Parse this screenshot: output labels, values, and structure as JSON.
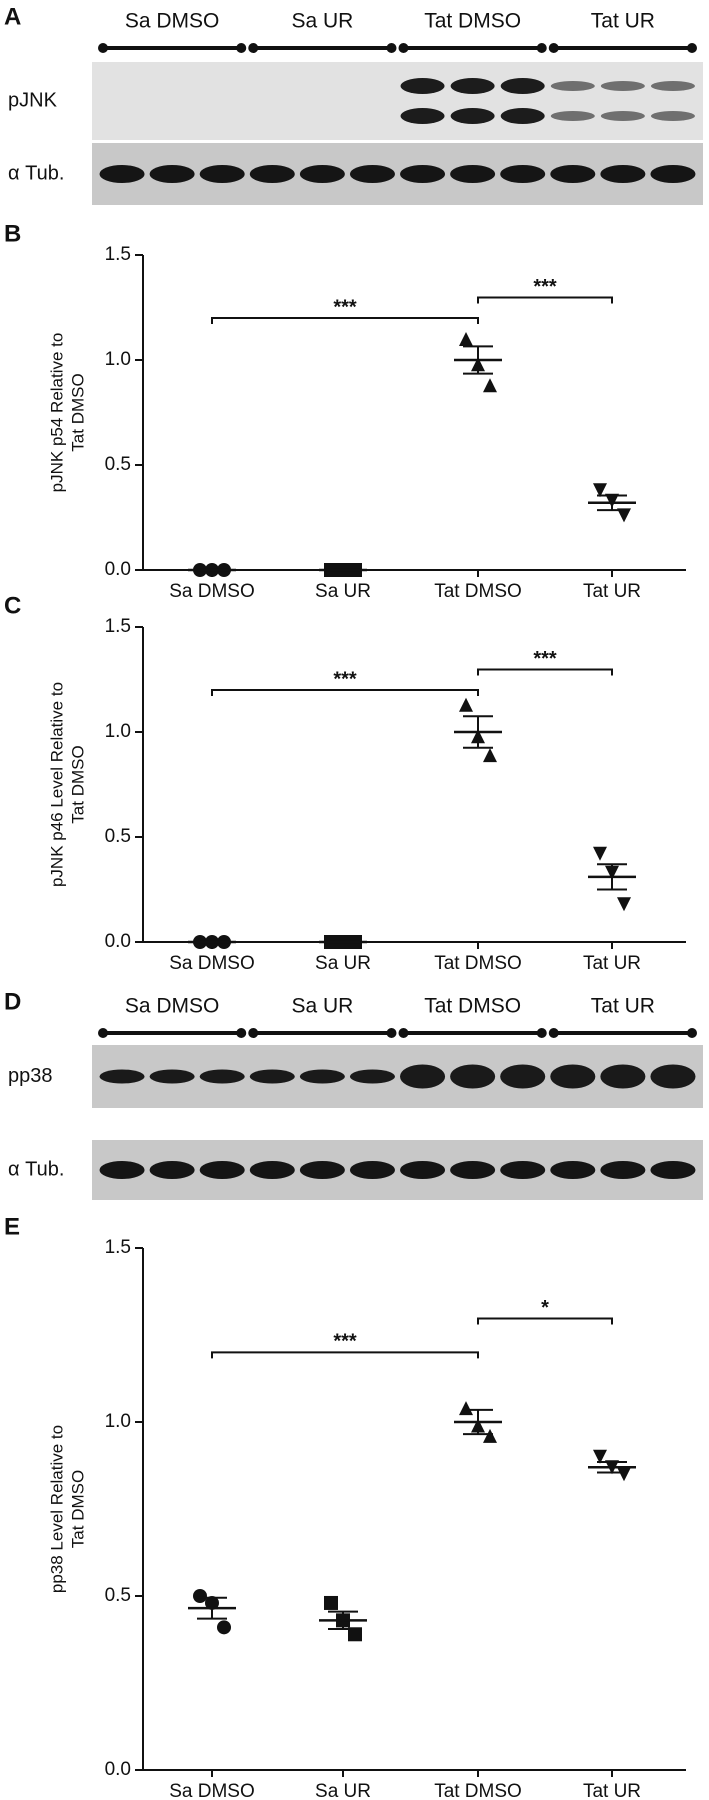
{
  "blots": [
    {
      "panel": "A",
      "groups": [
        "Sa DMSO",
        "Sa UR",
        "Tat DMSO",
        "Tat UR"
      ],
      "rows": [
        "pJNK",
        "α Tub."
      ]
    },
    {
      "panel": "D",
      "groups": [
        "Sa DMSO",
        "Sa UR",
        "Tat DMSO",
        "Tat UR"
      ],
      "rows": [
        "pp38",
        "α Tub."
      ]
    }
  ],
  "chart_data": [
    {
      "type": "dotplot",
      "panel": "B",
      "ylabel": [
        "pJNK p54 Relative to",
        "Tat DMSO"
      ],
      "categories": [
        "Sa DMSO",
        "Sa UR",
        "Tat DMSO",
        "Tat UR"
      ],
      "markers": [
        "circle",
        "square",
        "triangle-up",
        "triangle-down"
      ],
      "values": [
        [
          0,
          0,
          0
        ],
        [
          0,
          0,
          0
        ],
        [
          1.1,
          0.98,
          0.88
        ],
        [
          0.38,
          0.33,
          0.26
        ]
      ],
      "means": [
        0,
        0,
        1.0,
        0.32
      ],
      "sems": [
        0,
        0,
        0.065,
        0.035
      ],
      "ylim": [
        0,
        1.5
      ],
      "yticks": [
        {
          "value": 0,
          "label": "0.0"
        },
        {
          "value": 0.5,
          "label": "0.5"
        },
        {
          "value": 1,
          "label": "1.0"
        },
        {
          "value": 1.5,
          "label": "1.5"
        }
      ],
      "annotations": [
        {
          "label": "***",
          "between": [
            "Sa DMSO",
            "Tat DMSO"
          ]
        },
        {
          "label": "***",
          "between": [
            "Tat DMSO",
            "Tat UR"
          ]
        }
      ]
    },
    {
      "type": "dotplot",
      "panel": "C",
      "ylabel": [
        "pJNK p46 Level Relative to",
        "Tat DMSO"
      ],
      "categories": [
        "Sa DMSO",
        "Sa UR",
        "Tat DMSO",
        "Tat UR"
      ],
      "markers": [
        "circle",
        "square",
        "triangle-up",
        "triangle-down"
      ],
      "values": [
        [
          0,
          0,
          0
        ],
        [
          0,
          0,
          0
        ],
        [
          1.13,
          0.98,
          0.89
        ],
        [
          0.42,
          0.33,
          0.18
        ]
      ],
      "means": [
        0,
        0,
        1.0,
        0.31
      ],
      "sems": [
        0,
        0,
        0.075,
        0.06
      ],
      "ylim": [
        0,
        1.5
      ],
      "yticks": [
        {
          "value": 0,
          "label": "0.0"
        },
        {
          "value": 0.5,
          "label": "0.5"
        },
        {
          "value": 1,
          "label": "1.0"
        },
        {
          "value": 1.5,
          "label": "1.5"
        }
      ],
      "annotations": [
        {
          "label": "***",
          "between": [
            "Sa DMSO",
            "Tat DMSO"
          ]
        },
        {
          "label": "***",
          "between": [
            "Tat DMSO",
            "Tat UR"
          ]
        }
      ]
    },
    {
      "type": "dotplot",
      "panel": "E",
      "ylabel": [
        "pp38 Level Relative to",
        "Tat DMSO"
      ],
      "categories": [
        "Sa DMSO",
        "Sa UR",
        "Tat DMSO",
        "Tat UR"
      ],
      "markers": [
        "circle",
        "square",
        "triangle-up",
        "triangle-down"
      ],
      "values": [
        [
          0.5,
          0.48,
          0.41
        ],
        [
          0.48,
          0.43,
          0.39
        ],
        [
          1.04,
          0.99,
          0.96
        ],
        [
          0.9,
          0.87,
          0.85
        ]
      ],
      "means": [
        0.465,
        0.43,
        1.0,
        0.87
      ],
      "sems": [
        0.03,
        0.025,
        0.035,
        0.015
      ],
      "ylim": [
        0,
        1.5
      ],
      "yticks": [
        {
          "value": 0,
          "label": "0.0"
        },
        {
          "value": 0.5,
          "label": "0.5"
        },
        {
          "value": 1,
          "label": "1.0"
        },
        {
          "value": 1.5,
          "label": "1.5"
        }
      ],
      "annotations": [
        {
          "label": "***",
          "between": [
            "Sa DMSO",
            "Tat DMSO"
          ]
        },
        {
          "label": "*",
          "between": [
            "Tat DMSO",
            "Tat UR"
          ]
        }
      ]
    }
  ]
}
